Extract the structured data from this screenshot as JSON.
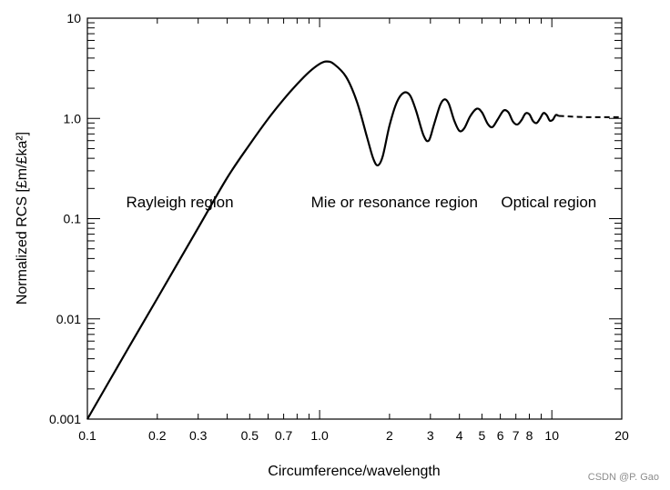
{
  "chart_data": {
    "type": "line",
    "title": "",
    "xlabel": "Circumference/wavelength",
    "ylabel": "Normalized RCS [£m/£ka²]",
    "xscale": "log",
    "yscale": "log",
    "xlim": [
      0.1,
      20
    ],
    "ylim": [
      0.001,
      10
    ],
    "x_tick_labels": [
      "0.1",
      "0.2",
      "0.3",
      "0.5",
      "0.7",
      "1.0",
      "2",
      "3",
      "4",
      "5",
      "6",
      "7",
      "8",
      "10",
      "20"
    ],
    "x_tick_values": [
      0.1,
      0.2,
      0.3,
      0.5,
      0.7,
      1.0,
      2,
      3,
      4,
      5,
      6,
      7,
      8,
      10,
      20
    ],
    "y_tick_labels": [
      "0.001",
      "0.01",
      "0.1",
      "1.0",
      "10"
    ],
    "y_tick_values": [
      0.001,
      0.01,
      0.1,
      1.0,
      10
    ],
    "grid": false,
    "annotations": [
      {
        "text": "Rayleigh region",
        "x": 0.25,
        "y": 0.13
      },
      {
        "text": "Mie or resonance region",
        "x": 2.1,
        "y": 0.13
      },
      {
        "text": "Optical region",
        "x": 9.7,
        "y": 0.13
      }
    ],
    "series": [
      {
        "style": "solid",
        "color": "#000000",
        "points": [
          [
            0.1,
            0.001
          ],
          [
            0.15,
            0.0051
          ],
          [
            0.2,
            0.016
          ],
          [
            0.3,
            0.081
          ],
          [
            0.4,
            0.256
          ],
          [
            0.5,
            0.55
          ],
          [
            0.6,
            0.99
          ],
          [
            0.7,
            1.55
          ],
          [
            0.8,
            2.2
          ],
          [
            0.9,
            2.9
          ],
          [
            1.0,
            3.5
          ],
          [
            1.07,
            3.7
          ],
          [
            1.15,
            3.5
          ],
          [
            1.3,
            2.6
          ],
          [
            1.45,
            1.45
          ],
          [
            1.6,
            0.65
          ],
          [
            1.7,
            0.4
          ],
          [
            1.78,
            0.34
          ],
          [
            1.87,
            0.42
          ],
          [
            2.0,
            0.85
          ],
          [
            2.15,
            1.45
          ],
          [
            2.3,
            1.8
          ],
          [
            2.45,
            1.7
          ],
          [
            2.6,
            1.2
          ],
          [
            2.8,
            0.68
          ],
          [
            2.95,
            0.6
          ],
          [
            3.1,
            0.85
          ],
          [
            3.3,
            1.35
          ],
          [
            3.45,
            1.55
          ],
          [
            3.6,
            1.4
          ],
          [
            3.8,
            0.95
          ],
          [
            4.0,
            0.75
          ],
          [
            4.2,
            0.8
          ],
          [
            4.45,
            1.05
          ],
          [
            4.75,
            1.25
          ],
          [
            5.0,
            1.15
          ],
          [
            5.3,
            0.88
          ],
          [
            5.55,
            0.82
          ],
          [
            5.85,
            0.98
          ],
          [
            6.2,
            1.2
          ],
          [
            6.5,
            1.15
          ],
          [
            6.8,
            0.93
          ],
          [
            7.1,
            0.87
          ],
          [
            7.4,
            0.96
          ],
          [
            7.7,
            1.12
          ],
          [
            8.0,
            1.1
          ],
          [
            8.3,
            0.94
          ],
          [
            8.6,
            0.9
          ],
          [
            8.9,
            1.0
          ],
          [
            9.2,
            1.13
          ],
          [
            9.5,
            1.08
          ],
          [
            9.8,
            0.95
          ],
          [
            10.1,
            0.97
          ],
          [
            10.4,
            1.08
          ],
          [
            10.7,
            1.06
          ]
        ]
      },
      {
        "style": "dashed",
        "color": "#000000",
        "points": [
          [
            10.7,
            1.06
          ],
          [
            14,
            1.03
          ],
          [
            20,
            1.03
          ]
        ]
      }
    ]
  },
  "watermark": "CSDN @P. Gao"
}
